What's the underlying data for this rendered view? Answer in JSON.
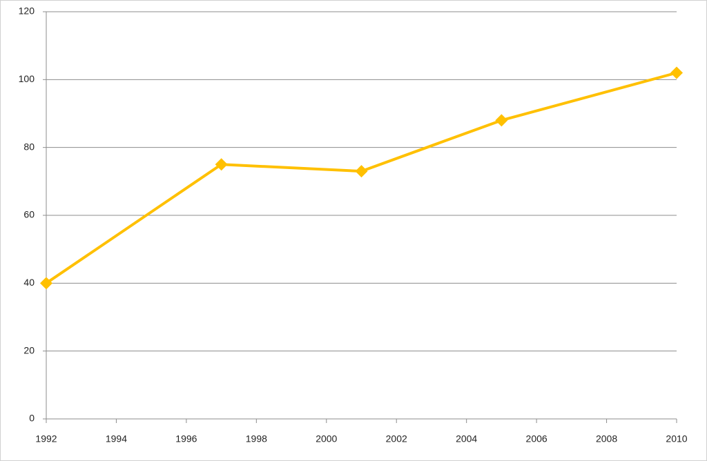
{
  "chart_data": {
    "type": "line",
    "x": [
      1992,
      1997,
      2001,
      2005,
      2010
    ],
    "values": [
      40,
      75,
      73,
      88,
      102
    ],
    "color": "#ffc000",
    "xlim": [
      1992,
      2010
    ],
    "xticks": [
      1992,
      1994,
      1996,
      1998,
      2000,
      2002,
      2004,
      2006,
      2008,
      2010
    ],
    "ylim": [
      0,
      120
    ],
    "yticks": [
      0,
      20,
      40,
      60,
      80,
      100,
      120
    ],
    "grid": true
  }
}
